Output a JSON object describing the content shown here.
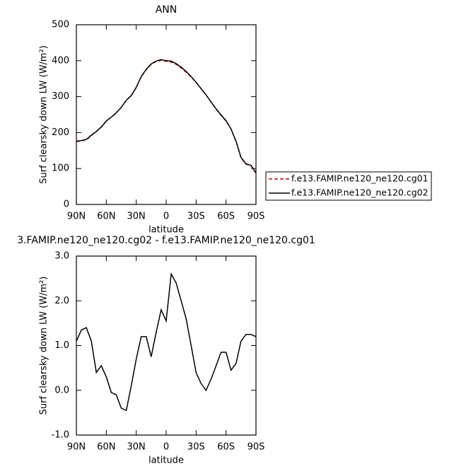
{
  "chart_data": [
    {
      "type": "line",
      "title": "ANN",
      "xlabel": "latitude",
      "ylabel": "Surf clearsky down LW (W/m²)",
      "x": [
        90,
        85,
        80,
        75,
        70,
        65,
        60,
        55,
        50,
        45,
        40,
        35,
        30,
        25,
        20,
        15,
        10,
        5,
        0,
        -5,
        -10,
        -15,
        -20,
        -25,
        -30,
        -35,
        -40,
        -45,
        -50,
        -55,
        -60,
        -65,
        -70,
        -75,
        -80,
        -85,
        -90
      ],
      "series": [
        {
          "name": "f.e13.FAMIP.ne120_ne120.cg01",
          "color": "#cc0000",
          "linestyle": "dashed",
          "values": [
            175,
            177,
            180,
            192,
            203,
            215,
            232,
            243,
            255,
            270,
            290,
            303,
            325,
            355,
            375,
            390,
            398,
            401,
            398,
            396,
            390,
            380,
            368,
            355,
            340,
            322,
            305,
            285,
            265,
            248,
            232,
            210,
            175,
            130,
            112,
            108,
            87
          ]
        },
        {
          "name": "f.e13.FAMIP.ne120_ne120.cg02",
          "color": "#000000",
          "linestyle": "solid",
          "values": [
            176,
            178,
            181,
            193,
            203,
            216,
            232,
            243,
            255,
            270,
            290,
            303,
            326,
            356,
            376,
            391,
            399,
            403,
            400,
            399,
            392,
            382,
            370,
            356,
            340,
            322,
            305,
            285,
            266,
            249,
            233,
            210,
            176,
            131,
            113,
            109,
            88
          ]
        }
      ],
      "xlim": [
        90,
        -90
      ],
      "xticks": [
        {
          "value": 90,
          "label": "90N"
        },
        {
          "value": 60,
          "label": "60N"
        },
        {
          "value": 30,
          "label": "30N"
        },
        0,
        {
          "value": -30,
          "label": "30S"
        },
        {
          "value": -60,
          "label": "60S"
        },
        {
          "value": -90,
          "label": "90S"
        }
      ],
      "ylim": [
        0,
        500
      ],
      "yticks": [
        0,
        100,
        200,
        300,
        400,
        500
      ],
      "legend": "right"
    },
    {
      "type": "line",
      "title": "3.FAMIP.ne120_ne120.cg02 - f.e13.FAMIP.ne120_ne120.cg01",
      "xlabel": "latitude",
      "ylabel": "Surf clearsky down LW (W/m²)",
      "x": [
        90,
        85,
        80,
        75,
        70,
        65,
        60,
        55,
        50,
        45,
        40,
        35,
        30,
        25,
        20,
        15,
        10,
        5,
        0,
        -5,
        -10,
        -15,
        -20,
        -25,
        -30,
        -35,
        -40,
        -45,
        -50,
        -55,
        -60,
        -65,
        -70,
        -75,
        -80,
        -85,
        -90
      ],
      "series": [
        {
          "color": "#000000",
          "linestyle": "solid",
          "values": [
            1.1,
            1.35,
            1.4,
            1.1,
            0.4,
            0.55,
            0.3,
            -0.05,
            -0.1,
            -0.4,
            -0.45,
            0.1,
            0.7,
            1.2,
            1.2,
            0.75,
            1.3,
            1.8,
            1.55,
            2.6,
            2.4,
            2.0,
            1.6,
            1.0,
            0.4,
            0.15,
            0.0,
            0.25,
            0.55,
            0.85,
            0.85,
            0.45,
            0.6,
            1.1,
            1.25,
            1.25,
            1.2
          ]
        }
      ],
      "xlim": [
        90,
        -90
      ],
      "xticks": [
        {
          "value": 90,
          "label": "90N"
        },
        {
          "value": 60,
          "label": "60N"
        },
        {
          "value": 30,
          "label": "30N"
        },
        0,
        {
          "value": -30,
          "label": "30S"
        },
        {
          "value": -60,
          "label": "60S"
        },
        {
          "value": -90,
          "label": "90S"
        }
      ],
      "ylim": [
        -1,
        3
      ],
      "yticks": [
        {
          "value": -1,
          "label": "-1.0"
        },
        {
          "value": 0,
          "label": "0.0"
        },
        {
          "value": 1,
          "label": "1.0"
        },
        {
          "value": 2,
          "label": "2.0"
        },
        {
          "value": 3,
          "label": "3.0"
        }
      ]
    }
  ]
}
